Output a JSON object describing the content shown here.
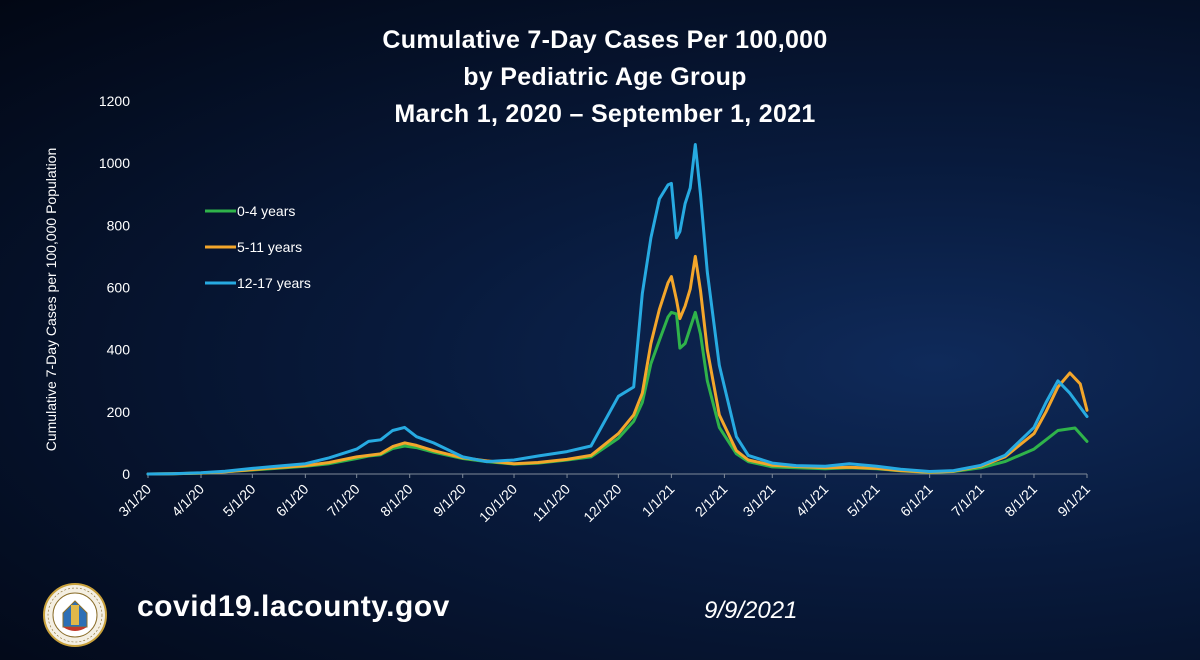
{
  "title_lines": [
    "Cumulative 7-Day Cases Per 100,000",
    "by Pediatric Age Group",
    "March 1, 2020 – September 1, 2021"
  ],
  "footer": {
    "url": "covid19.lacounty.gov",
    "date": "9/9/2021",
    "seal_text": "COUNTY OF LOS ANGELES · CALIFORNIA"
  },
  "chart_data": {
    "type": "line",
    "title": "Cumulative 7-Day Cases Per 100,000 by Pediatric Age Group March 1, 2020 – September 1, 2021",
    "xlabel": "",
    "ylabel": "Cumulative 7-Day Cases per 100,000 Population",
    "ylim": [
      0,
      1200
    ],
    "yticks": [
      0,
      200,
      400,
      600,
      800,
      1000,
      1200
    ],
    "x_tick_labels": [
      "3/1/20",
      "4/1/20",
      "5/1/20",
      "6/1/20",
      "7/1/20",
      "8/1/20",
      "9/1/20",
      "10/1/20",
      "11/1/20",
      "12/1/20",
      "1/1/21",
      "2/1/21",
      "3/1/21",
      "4/1/21",
      "5/1/21",
      "6/1/21",
      "7/1/21",
      "8/1/21",
      "9/1/21"
    ],
    "grid": false,
    "legend_position": "upper-left",
    "series": [
      {
        "name": "0-4 years",
        "color": "#2fb34a",
        "points": [
          [
            "2020-03-01",
            0
          ],
          [
            "2020-03-15",
            1
          ],
          [
            "2020-04-01",
            3
          ],
          [
            "2020-04-15",
            7
          ],
          [
            "2020-05-01",
            13
          ],
          [
            "2020-05-15",
            18
          ],
          [
            "2020-06-01",
            25
          ],
          [
            "2020-06-15",
            33
          ],
          [
            "2020-07-01",
            50
          ],
          [
            "2020-07-08",
            58
          ],
          [
            "2020-07-15",
            62
          ],
          [
            "2020-07-22",
            82
          ],
          [
            "2020-07-29",
            90
          ],
          [
            "2020-08-05",
            85
          ],
          [
            "2020-08-15",
            70
          ],
          [
            "2020-09-01",
            50
          ],
          [
            "2020-09-15",
            40
          ],
          [
            "2020-10-01",
            32
          ],
          [
            "2020-10-15",
            35
          ],
          [
            "2020-11-01",
            45
          ],
          [
            "2020-11-15",
            55
          ],
          [
            "2020-12-01",
            115
          ],
          [
            "2020-12-10",
            170
          ],
          [
            "2020-12-15",
            230
          ],
          [
            "2020-12-20",
            355
          ],
          [
            "2020-12-25",
            430
          ],
          [
            "2020-12-30",
            505
          ],
          [
            "2021-01-01",
            520
          ],
          [
            "2021-01-04",
            515
          ],
          [
            "2021-01-06",
            405
          ],
          [
            "2021-01-09",
            420
          ],
          [
            "2021-01-12",
            470
          ],
          [
            "2021-01-15",
            520
          ],
          [
            "2021-01-18",
            450
          ],
          [
            "2021-01-22",
            300
          ],
          [
            "2021-01-29",
            150
          ],
          [
            "2021-02-08",
            65
          ],
          [
            "2021-02-15",
            40
          ],
          [
            "2021-03-01",
            23
          ],
          [
            "2021-03-15",
            20
          ],
          [
            "2021-04-01",
            17
          ],
          [
            "2021-04-15",
            20
          ],
          [
            "2021-05-01",
            17
          ],
          [
            "2021-05-15",
            10
          ],
          [
            "2021-06-01",
            5
          ],
          [
            "2021-06-15",
            8
          ],
          [
            "2021-07-01",
            20
          ],
          [
            "2021-07-15",
            40
          ],
          [
            "2021-08-01",
            80
          ],
          [
            "2021-08-08",
            110
          ],
          [
            "2021-08-15",
            140
          ],
          [
            "2021-08-25",
            148
          ],
          [
            "2021-09-01",
            105
          ]
        ]
      },
      {
        "name": "5-11 years",
        "color": "#f3a62b",
        "points": [
          [
            "2020-03-01",
            0
          ],
          [
            "2020-03-15",
            1
          ],
          [
            "2020-04-01",
            3
          ],
          [
            "2020-04-15",
            7
          ],
          [
            "2020-05-01",
            14
          ],
          [
            "2020-05-15",
            20
          ],
          [
            "2020-06-01",
            27
          ],
          [
            "2020-06-15",
            37
          ],
          [
            "2020-07-01",
            55
          ],
          [
            "2020-07-08",
            60
          ],
          [
            "2020-07-15",
            65
          ],
          [
            "2020-07-22",
            88
          ],
          [
            "2020-07-29",
            100
          ],
          [
            "2020-08-05",
            92
          ],
          [
            "2020-08-15",
            75
          ],
          [
            "2020-09-01",
            52
          ],
          [
            "2020-09-15",
            42
          ],
          [
            "2020-10-01",
            33
          ],
          [
            "2020-10-15",
            37
          ],
          [
            "2020-11-01",
            47
          ],
          [
            "2020-11-15",
            60
          ],
          [
            "2020-12-01",
            130
          ],
          [
            "2020-12-10",
            190
          ],
          [
            "2020-12-15",
            260
          ],
          [
            "2020-12-20",
            420
          ],
          [
            "2020-12-25",
            530
          ],
          [
            "2020-12-30",
            615
          ],
          [
            "2021-01-01",
            635
          ],
          [
            "2021-01-04",
            560
          ],
          [
            "2021-01-06",
            500
          ],
          [
            "2021-01-09",
            540
          ],
          [
            "2021-01-12",
            595
          ],
          [
            "2021-01-15",
            700
          ],
          [
            "2021-01-18",
            590
          ],
          [
            "2021-01-22",
            400
          ],
          [
            "2021-01-29",
            190
          ],
          [
            "2021-02-08",
            75
          ],
          [
            "2021-02-15",
            45
          ],
          [
            "2021-03-01",
            28
          ],
          [
            "2021-03-15",
            24
          ],
          [
            "2021-04-01",
            20
          ],
          [
            "2021-04-15",
            22
          ],
          [
            "2021-05-01",
            18
          ],
          [
            "2021-05-15",
            11
          ],
          [
            "2021-06-01",
            6
          ],
          [
            "2021-06-15",
            9
          ],
          [
            "2021-07-01",
            25
          ],
          [
            "2021-07-15",
            55
          ],
          [
            "2021-08-01",
            130
          ],
          [
            "2021-08-08",
            200
          ],
          [
            "2021-08-15",
            280
          ],
          [
            "2021-08-22",
            325
          ],
          [
            "2021-08-28",
            290
          ],
          [
            "2021-09-01",
            205
          ]
        ]
      },
      {
        "name": "12-17 years",
        "color": "#27aae1",
        "points": [
          [
            "2020-03-01",
            0
          ],
          [
            "2020-03-15",
            1
          ],
          [
            "2020-04-01",
            4
          ],
          [
            "2020-04-15",
            9
          ],
          [
            "2020-05-01",
            18
          ],
          [
            "2020-05-15",
            25
          ],
          [
            "2020-06-01",
            33
          ],
          [
            "2020-06-15",
            52
          ],
          [
            "2020-07-01",
            80
          ],
          [
            "2020-07-08",
            105
          ],
          [
            "2020-07-15",
            110
          ],
          [
            "2020-07-22",
            140
          ],
          [
            "2020-07-29",
            150
          ],
          [
            "2020-08-05",
            120
          ],
          [
            "2020-08-15",
            100
          ],
          [
            "2020-09-01",
            55
          ],
          [
            "2020-09-15",
            40
          ],
          [
            "2020-10-01",
            45
          ],
          [
            "2020-10-15",
            58
          ],
          [
            "2020-11-01",
            72
          ],
          [
            "2020-11-15",
            90
          ],
          [
            "2020-12-01",
            250
          ],
          [
            "2020-12-10",
            280
          ],
          [
            "2020-12-15",
            580
          ],
          [
            "2020-12-20",
            760
          ],
          [
            "2020-12-25",
            885
          ],
          [
            "2020-12-30",
            930
          ],
          [
            "2021-01-01",
            935
          ],
          [
            "2021-01-04",
            760
          ],
          [
            "2021-01-06",
            780
          ],
          [
            "2021-01-09",
            870
          ],
          [
            "2021-01-12",
            920
          ],
          [
            "2021-01-15",
            1060
          ],
          [
            "2021-01-18",
            900
          ],
          [
            "2021-01-22",
            650
          ],
          [
            "2021-01-29",
            350
          ],
          [
            "2021-02-08",
            120
          ],
          [
            "2021-02-15",
            60
          ],
          [
            "2021-03-01",
            35
          ],
          [
            "2021-03-15",
            27
          ],
          [
            "2021-04-01",
            25
          ],
          [
            "2021-04-15",
            33
          ],
          [
            "2021-05-01",
            25
          ],
          [
            "2021-05-15",
            15
          ],
          [
            "2021-06-01",
            8
          ],
          [
            "2021-06-15",
            11
          ],
          [
            "2021-07-01",
            28
          ],
          [
            "2021-07-15",
            60
          ],
          [
            "2021-08-01",
            150
          ],
          [
            "2021-08-08",
            230
          ],
          [
            "2021-08-15",
            300
          ],
          [
            "2021-08-22",
            260
          ],
          [
            "2021-09-01",
            185
          ]
        ]
      }
    ]
  }
}
